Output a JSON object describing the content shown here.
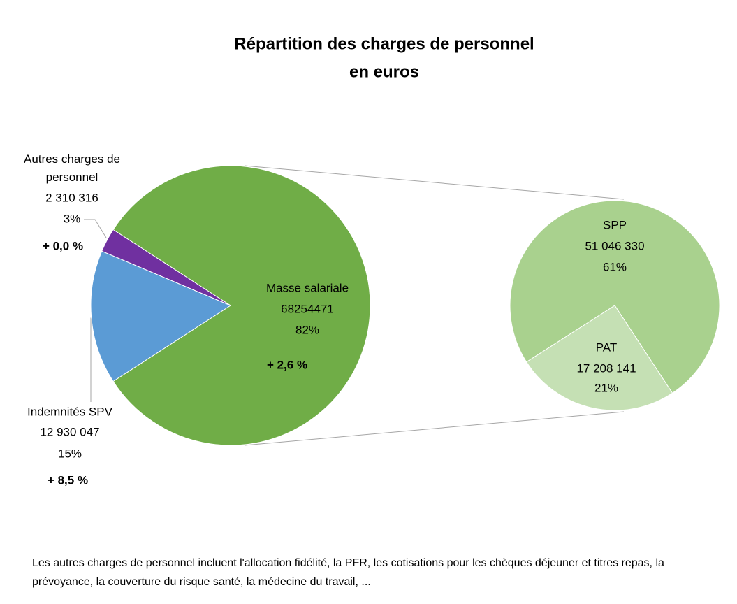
{
  "chart_data": {
    "type": "pie-of-pie",
    "title": "Répartition des charges de personnel",
    "subtitle": "en euros",
    "categories": [
      "Masse salariale",
      "Indemnités SPV",
      "Autres charges de personnel"
    ],
    "values": [
      68254471,
      12930047,
      2310316
    ],
    "value_labels": [
      "68254471",
      "12 930 047",
      "2 310 316"
    ],
    "percent_labels": [
      "82%",
      "15%",
      "3%"
    ],
    "change_labels": [
      "+ 2,6 %",
      "+ 8,5 %",
      "+ 0,0 %"
    ],
    "colors": [
      "#70ad47",
      "#5b9bd5",
      "#7030a0"
    ],
    "secondary": {
      "categories": [
        "SPP",
        "PAT"
      ],
      "values": [
        51046330,
        17208141
      ],
      "value_labels": [
        "51 046 330",
        "17 208 141"
      ],
      "percent_labels": [
        "61%",
        "21%"
      ],
      "colors": [
        "#a9d18e",
        "#c5e0b4"
      ]
    },
    "note": "Les autres charges de personnel incluent l'allocation fidélité, la PFR, les cotisations pour les chèques déjeuner et titres repas, la prévoyance, la couverture du risque santé, la médecine du travail, ..."
  }
}
